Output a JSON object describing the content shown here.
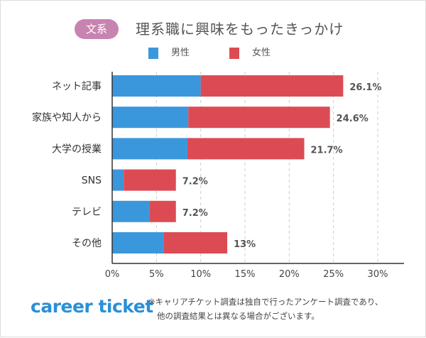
{
  "header": {
    "badge": "文系",
    "title": "理系職に興味をもったきっかけ"
  },
  "footer": {
    "logo": "career ticket",
    "note_line1": "※キャリアチケット調査は独自で行ったアンケート調査であり、",
    "note_line2": "他の調査結果とは異なる場合がございます。"
  },
  "chart_data": {
    "type": "bar",
    "orientation": "horizontal",
    "stacked": true,
    "title": "理系職に興味をもったきっかけ",
    "categories": [
      "ネット記事",
      "家族や知人から",
      "大学の授業",
      "SNS",
      "テレビ",
      "その他"
    ],
    "series": [
      {
        "name": "男性",
        "color": "#3a97dc",
        "values": [
          10.0,
          8.6,
          8.5,
          1.3,
          4.2,
          5.8
        ]
      },
      {
        "name": "女性",
        "color": "#dc4b53",
        "values": [
          16.1,
          16.0,
          13.2,
          5.9,
          3.0,
          7.2
        ]
      }
    ],
    "totals_labels": [
      "26.1%",
      "24.6%",
      "21.7%",
      "7.2%",
      "7.2%",
      "13%"
    ],
    "totals": [
      26.1,
      24.6,
      21.7,
      7.2,
      7.2,
      13
    ],
    "xlim": [
      0,
      30
    ],
    "xticks": [
      "0%",
      "5%",
      "10%",
      "15%",
      "20%",
      "25%",
      "30%"
    ],
    "grid": true,
    "legend": "top"
  }
}
